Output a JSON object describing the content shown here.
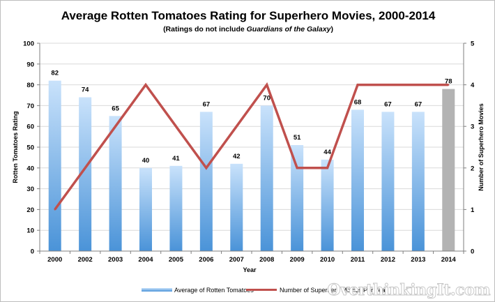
{
  "chart_data": {
    "type": "bar",
    "title": "Average Rotten Tomatoes Rating for Superhero Movies, 2000-2014",
    "subtitle_prefix": "(Ratings do not include ",
    "subtitle_italic": "Guardians of the Galaxy",
    "subtitle_suffix": ")",
    "xlabel": "Year",
    "ylabel": "Rotten Tomatoes Rating",
    "y2label": "Number of Superhero Movies",
    "ylim": [
      0,
      100
    ],
    "y2lim": [
      0,
      5
    ],
    "yticks": [
      "0",
      "10",
      "20",
      "30",
      "40",
      "50",
      "60",
      "70",
      "80",
      "90",
      "100"
    ],
    "y2ticks": [
      "0",
      "1",
      "2",
      "3",
      "4",
      "5"
    ],
    "grid": true,
    "legend_position": "bottom",
    "categories": [
      "2000",
      "2002",
      "2003",
      "2004",
      "2005",
      "2006",
      "2007",
      "2008",
      "2009",
      "2010",
      "2011",
      "2012",
      "2013",
      "2014"
    ],
    "series": [
      {
        "name": "Average of Rotten Tomatoes",
        "type": "bar",
        "axis": "left",
        "values": [
          82,
          74,
          65,
          40,
          41,
          67,
          42,
          70,
          51,
          44,
          68,
          67,
          67,
          78
        ],
        "labels": [
          "82",
          "74",
          "65",
          "40",
          "41",
          "67",
          "42",
          "70",
          "51",
          "44",
          "68",
          "67",
          "67",
          "78"
        ],
        "color_top": "#c9e2fb",
        "color_bottom": "#4a93d8",
        "highlight_index": 13,
        "highlight_color": "#b3b3b3"
      },
      {
        "name": "Number of Superhero Movies Per Year",
        "type": "line",
        "axis": "right",
        "values": [
          1,
          2,
          3,
          4,
          3,
          2,
          3,
          4,
          2,
          2,
          4,
          4,
          4,
          4
        ],
        "color": "#c0504d"
      }
    ],
    "watermark": "OverthinkingIt.com"
  }
}
